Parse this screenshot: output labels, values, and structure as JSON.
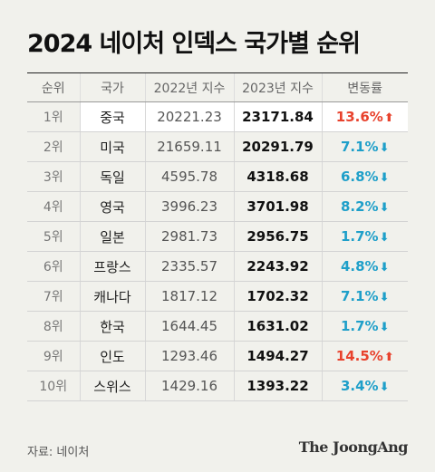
{
  "title": "2024 네이처 인덱스 국가별 순위",
  "headers": [
    "순위",
    "국가",
    "2022년 지수",
    "2023년 지수",
    "변동률"
  ],
  "source": "자료: 네이처",
  "brand": "The JoongAng",
  "colors": {
    "up": "#e8422d",
    "down": "#1e9fc9",
    "background": "#f1f1ec"
  },
  "chart_data": {
    "type": "table",
    "title": "2024 네이처 인덱스 국가별 순위",
    "columns": [
      "순위",
      "국가",
      "2022년 지수",
      "2023년 지수",
      "변동률"
    ],
    "rows": [
      {
        "rank": "1위",
        "country": "중국",
        "v2022": "20221.23",
        "v2023": "23171.84",
        "change": "13.6%",
        "dir": "up"
      },
      {
        "rank": "2위",
        "country": "미국",
        "v2022": "21659.11",
        "v2023": "20291.79",
        "change": "7.1%",
        "dir": "down"
      },
      {
        "rank": "3위",
        "country": "독일",
        "v2022": "4595.78",
        "v2023": "4318.68",
        "change": "6.8%",
        "dir": "down"
      },
      {
        "rank": "4위",
        "country": "영국",
        "v2022": "3996.23",
        "v2023": "3701.98",
        "change": "8.2%",
        "dir": "down"
      },
      {
        "rank": "5위",
        "country": "일본",
        "v2022": "2981.73",
        "v2023": "2956.75",
        "change": "1.7%",
        "dir": "down"
      },
      {
        "rank": "6위",
        "country": "프랑스",
        "v2022": "2335.57",
        "v2023": "2243.92",
        "change": "4.8%",
        "dir": "down"
      },
      {
        "rank": "7위",
        "country": "캐나다",
        "v2022": "1817.12",
        "v2023": "1702.32",
        "change": "7.1%",
        "dir": "down"
      },
      {
        "rank": "8위",
        "country": "한국",
        "v2022": "1644.45",
        "v2023": "1631.02",
        "change": "1.7%",
        "dir": "down"
      },
      {
        "rank": "9위",
        "country": "인도",
        "v2022": "1293.46",
        "v2023": "1494.27",
        "change": "14.5%",
        "dir": "up"
      },
      {
        "rank": "10위",
        "country": "스위스",
        "v2022": "1429.16",
        "v2023": "1393.22",
        "change": "3.4%",
        "dir": "down"
      }
    ]
  }
}
